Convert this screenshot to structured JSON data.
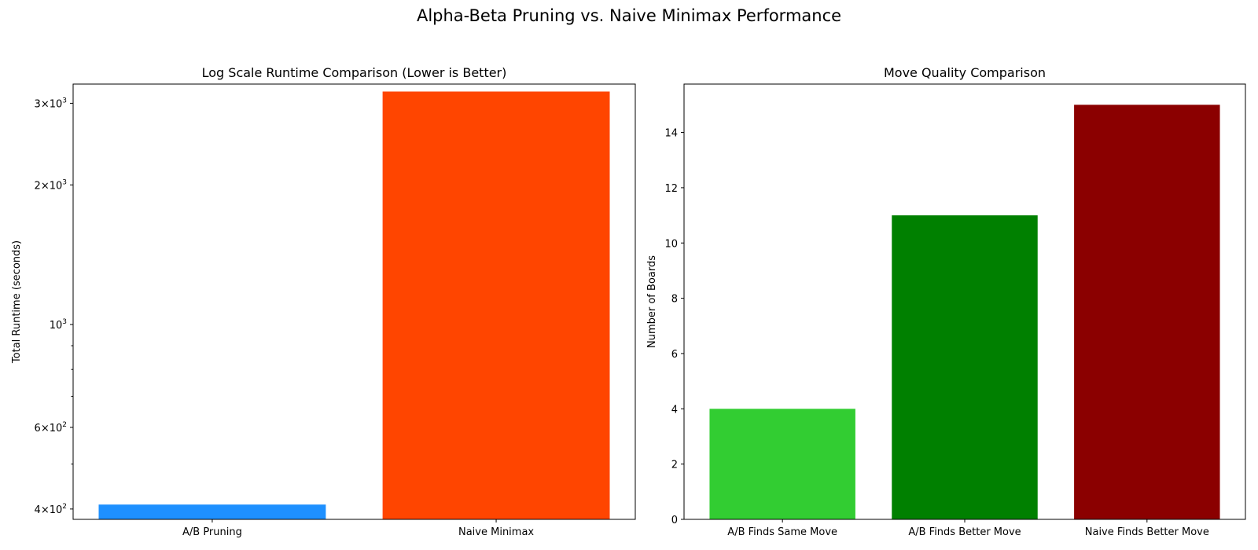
{
  "figure": {
    "title": "Alpha-Beta Pruning vs. Naive Minimax Performance"
  },
  "chart_data": [
    {
      "type": "bar",
      "title": "Log Scale Runtime Comparison (Lower is Better)",
      "xlabel": "",
      "ylabel": "Total Runtime (seconds)",
      "yscale": "log",
      "ylim": [
        380,
        3300
      ],
      "categories": [
        "A/B Pruning",
        "Naive Minimax"
      ],
      "values": [
        409,
        3180
      ],
      "colors": [
        "#1e90ff",
        "#ff4500"
      ],
      "yticks": [
        {
          "value": 400,
          "mantissa": "4",
          "base": "10",
          "exp": "2"
        },
        {
          "value": 600,
          "mantissa": "6",
          "base": "10",
          "exp": "2"
        },
        {
          "value": 1000,
          "mantissa": "",
          "base": "10",
          "exp": "3"
        },
        {
          "value": 2000,
          "mantissa": "2",
          "base": "10",
          "exp": "3"
        },
        {
          "value": 3000,
          "mantissa": "3",
          "base": "10",
          "exp": "3"
        }
      ],
      "minor_yticks": [
        500,
        700,
        800,
        900
      ],
      "grid": false
    },
    {
      "type": "bar",
      "title": "Move Quality Comparison",
      "xlabel": "",
      "ylabel": "Number of Boards",
      "ylim": [
        0,
        15.75
      ],
      "categories": [
        "A/B Finds Same Move",
        "A/B Finds Better Move",
        "Naive Finds Better Move"
      ],
      "values": [
        4,
        11,
        15
      ],
      "colors": [
        "#32cd32",
        "#008000",
        "#8b0000"
      ],
      "yticks": [
        0,
        2,
        4,
        6,
        8,
        10,
        12,
        14
      ],
      "grid": false
    }
  ]
}
